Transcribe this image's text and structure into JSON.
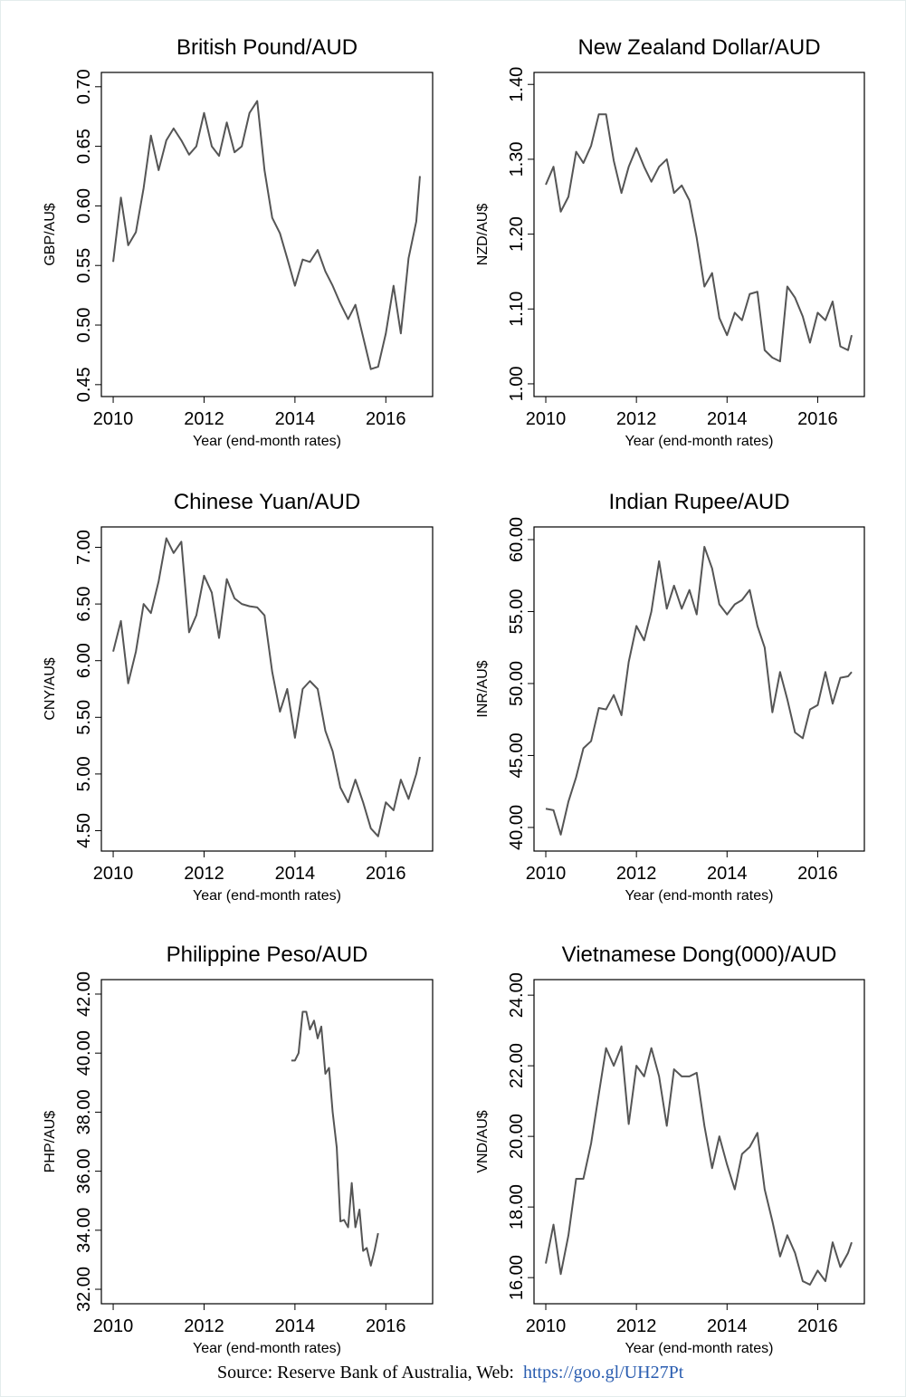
{
  "chart_data": [
    {
      "type": "line",
      "title": "British Pound/AUD",
      "ylabel": "GBP/AU$",
      "xlabel": "Year (end-month rates)",
      "color": "#555555",
      "x": [
        2010,
        2010.17,
        2010.33,
        2010.5,
        2010.67,
        2010.83,
        2011,
        2011.17,
        2011.33,
        2011.5,
        2011.67,
        2011.83,
        2012,
        2012.17,
        2012.33,
        2012.5,
        2012.67,
        2012.83,
        2013,
        2013.17,
        2013.33,
        2013.5,
        2013.67,
        2013.83,
        2014,
        2014.17,
        2014.33,
        2014.5,
        2014.67,
        2014.83,
        2015,
        2015.17,
        2015.33,
        2015.5,
        2015.67,
        2015.83,
        2016,
        2016.17,
        2016.33,
        2016.5,
        2016.67,
        2016.75
      ],
      "values": [
        0.553,
        0.607,
        0.567,
        0.578,
        0.615,
        0.659,
        0.63,
        0.655,
        0.665,
        0.655,
        0.643,
        0.65,
        0.678,
        0.65,
        0.642,
        0.67,
        0.645,
        0.65,
        0.678,
        0.688,
        0.63,
        0.59,
        0.577,
        0.556,
        0.533,
        0.555,
        0.553,
        0.563,
        0.545,
        0.533,
        0.518,
        0.505,
        0.517,
        0.49,
        0.463,
        0.465,
        0.493,
        0.533,
        0.493,
        0.556,
        0.587,
        0.625
      ],
      "xlim": [
        2009.74,
        2017.03
      ],
      "xticks": [
        2010,
        2012,
        2014,
        2016
      ],
      "ylim": [
        0.44,
        0.712
      ],
      "yticks": [
        {
          "value": 0.45,
          "label": "0.45"
        },
        {
          "value": 0.5,
          "label": "0.50"
        },
        {
          "value": 0.55,
          "label": "0.55"
        },
        {
          "value": 0.6,
          "label": "0.60"
        },
        {
          "value": 0.65,
          "label": "0.65"
        },
        {
          "value": 0.7,
          "label": "0.70"
        }
      ]
    },
    {
      "type": "line",
      "title": "New Zealand Dollar/AUD",
      "ylabel": "NZD/AU$",
      "xlabel": "Year (end-month rates)",
      "color": "#555555",
      "x": [
        2010,
        2010.17,
        2010.33,
        2010.5,
        2010.67,
        2010.83,
        2011,
        2011.17,
        2011.33,
        2011.5,
        2011.67,
        2011.83,
        2012,
        2012.17,
        2012.33,
        2012.5,
        2012.67,
        2012.83,
        2013,
        2013.17,
        2013.33,
        2013.5,
        2013.67,
        2013.83,
        2014,
        2014.17,
        2014.33,
        2014.5,
        2014.67,
        2014.83,
        2015,
        2015.17,
        2015.33,
        2015.5,
        2015.67,
        2015.83,
        2016,
        2016.17,
        2016.33,
        2016.5,
        2016.67,
        2016.75
      ],
      "values": [
        1.266,
        1.29,
        1.23,
        1.25,
        1.31,
        1.295,
        1.318,
        1.36,
        1.36,
        1.298,
        1.255,
        1.29,
        1.315,
        1.29,
        1.27,
        1.29,
        1.3,
        1.255,
        1.265,
        1.245,
        1.195,
        1.13,
        1.148,
        1.088,
        1.065,
        1.095,
        1.085,
        1.12,
        1.123,
        1.045,
        1.035,
        1.03,
        1.13,
        1.115,
        1.09,
        1.055,
        1.095,
        1.085,
        1.11,
        1.05,
        1.045,
        1.065
      ],
      "xlim": [
        2009.74,
        2017.03
      ],
      "xticks": [
        2010,
        2012,
        2014,
        2016
      ],
      "ylim": [
        0.983,
        1.416
      ],
      "yticks": [
        {
          "value": 1.0,
          "label": "1.00"
        },
        {
          "value": 1.1,
          "label": "1.10"
        },
        {
          "value": 1.2,
          "label": "1.20"
        },
        {
          "value": 1.3,
          "label": "1.30"
        },
        {
          "value": 1.4,
          "label": "1.40"
        }
      ]
    },
    {
      "type": "line",
      "title": "Chinese Yuan/AUD",
      "ylabel": "CNY/AU$",
      "xlabel": "Year (end-month rates)",
      "color": "#555555",
      "x": [
        2010,
        2010.17,
        2010.33,
        2010.5,
        2010.67,
        2010.83,
        2011,
        2011.17,
        2011.33,
        2011.5,
        2011.67,
        2011.83,
        2012,
        2012.17,
        2012.33,
        2012.5,
        2012.67,
        2012.83,
        2013,
        2013.17,
        2013.33,
        2013.5,
        2013.67,
        2013.83,
        2014,
        2014.17,
        2014.33,
        2014.5,
        2014.67,
        2014.83,
        2015,
        2015.17,
        2015.33,
        2015.5,
        2015.67,
        2015.83,
        2016,
        2016.17,
        2016.33,
        2016.5,
        2016.67,
        2016.75
      ],
      "values": [
        6.08,
        6.35,
        5.8,
        6.08,
        6.5,
        6.42,
        6.7,
        7.08,
        6.95,
        7.05,
        6.25,
        6.4,
        6.75,
        6.6,
        6.2,
        6.72,
        6.55,
        6.5,
        6.48,
        6.47,
        6.4,
        5.9,
        5.55,
        5.75,
        5.32,
        5.75,
        5.82,
        5.75,
        5.38,
        5.2,
        4.88,
        4.75,
        4.95,
        4.75,
        4.52,
        4.45,
        4.75,
        4.68,
        4.95,
        4.78,
        5.0,
        5.15
      ],
      "xlim": [
        2009.74,
        2017.03
      ],
      "xticks": [
        2010,
        2012,
        2014,
        2016
      ],
      "ylim": [
        4.32,
        7.18
      ],
      "yticks": [
        {
          "value": 4.5,
          "label": "4.50"
        },
        {
          "value": 5,
          "label": "5.00"
        },
        {
          "value": 5.5,
          "label": "5.50"
        },
        {
          "value": 6,
          "label": "6.00"
        },
        {
          "value": 6.5,
          "label": "6.50"
        },
        {
          "value": 7,
          "label": "7.00"
        }
      ]
    },
    {
      "type": "line",
      "title": "Indian Rupee/AUD",
      "ylabel": "INR/AU$",
      "xlabel": "Year (end-month rates)",
      "color": "#555555",
      "x": [
        2010,
        2010.17,
        2010.33,
        2010.5,
        2010.67,
        2010.83,
        2011,
        2011.17,
        2011.33,
        2011.5,
        2011.67,
        2011.83,
        2012,
        2012.17,
        2012.33,
        2012.5,
        2012.67,
        2012.83,
        2013,
        2013.17,
        2013.33,
        2013.5,
        2013.67,
        2013.83,
        2014,
        2014.17,
        2014.33,
        2014.5,
        2014.67,
        2014.83,
        2015,
        2015.17,
        2015.33,
        2015.5,
        2015.67,
        2015.83,
        2016,
        2016.17,
        2016.33,
        2016.5,
        2016.67,
        2016.75
      ],
      "values": [
        41.3,
        41.2,
        39.5,
        41.8,
        43.5,
        45.5,
        46,
        48.3,
        48.2,
        49.2,
        47.8,
        51.5,
        54,
        53,
        55,
        58.5,
        55.2,
        56.8,
        55.2,
        56.5,
        54.8,
        59.5,
        58,
        55.5,
        54.8,
        55.5,
        55.8,
        56.5,
        54,
        52.5,
        48,
        50.8,
        48.9,
        46.6,
        46.2,
        48.2,
        48.5,
        50.8,
        48.6,
        50.4,
        50.5,
        50.8
      ],
      "xlim": [
        2009.74,
        2017.03
      ],
      "xticks": [
        2010,
        2012,
        2014,
        2016
      ],
      "ylim": [
        38.36,
        60.88
      ],
      "yticks": [
        {
          "value": 40,
          "label": "40.00"
        },
        {
          "value": 45,
          "label": "45.00"
        },
        {
          "value": 50,
          "label": "50.00"
        },
        {
          "value": 55,
          "label": "55.00"
        },
        {
          "value": 60,
          "label": "60.00"
        }
      ]
    },
    {
      "type": "line",
      "title": "Philippine Peso/AUD",
      "ylabel": "PHP/AU$",
      "xlabel": "Year (end-month rates)",
      "color": "#555555",
      "x": [
        2013.92,
        2014,
        2014.08,
        2014.17,
        2014.25,
        2014.33,
        2014.42,
        2014.5,
        2014.58,
        2014.67,
        2014.75,
        2014.83,
        2014.92,
        2015,
        2015.08,
        2015.17,
        2015.25,
        2015.33,
        2015.42,
        2015.5,
        2015.58,
        2015.67,
        2015.75,
        2015.83
      ],
      "values": [
        39.75,
        39.75,
        40.0,
        41.4,
        41.4,
        40.8,
        41.1,
        40.5,
        40.9,
        39.3,
        39.5,
        38.0,
        36.8,
        34.3,
        34.35,
        34.1,
        35.6,
        34.1,
        34.7,
        33.3,
        33.4,
        32.8,
        33.3,
        33.9
      ],
      "xlim": [
        2009.74,
        2017.03
      ],
      "xticks": [
        2010,
        2012,
        2014,
        2016
      ],
      "ylim": [
        31.51,
        42.49
      ],
      "yticks": [
        {
          "value": 32,
          "label": "32.00"
        },
        {
          "value": 34,
          "label": "34.00"
        },
        {
          "value": 36,
          "label": "36.00"
        },
        {
          "value": 38,
          "label": "38.00"
        },
        {
          "value": 40,
          "label": "40.00"
        },
        {
          "value": 42,
          "label": "42.00"
        }
      ]
    },
    {
      "type": "line",
      "title": "Vietnamese Dong(000)/AUD",
      "ylabel": "VND/AU$",
      "xlabel": "Year (end-month rates)",
      "color": "#555555",
      "x": [
        2010,
        2010.17,
        2010.33,
        2010.5,
        2010.67,
        2010.83,
        2011,
        2011.17,
        2011.33,
        2011.5,
        2011.67,
        2011.83,
        2012,
        2012.17,
        2012.33,
        2012.5,
        2012.67,
        2012.83,
        2013,
        2013.17,
        2013.33,
        2013.5,
        2013.67,
        2013.83,
        2014,
        2014.17,
        2014.33,
        2014.5,
        2014.67,
        2014.83,
        2015,
        2015.17,
        2015.33,
        2015.5,
        2015.67,
        2015.83,
        2016,
        2016.17,
        2016.33,
        2016.5,
        2016.67,
        2016.75
      ],
      "values": [
        16.4,
        17.5,
        16.1,
        17.2,
        18.8,
        18.8,
        19.8,
        21.2,
        22.5,
        22.0,
        22.55,
        20.35,
        22.0,
        21.7,
        22.5,
        21.7,
        20.3,
        21.9,
        21.7,
        21.7,
        21.8,
        20.3,
        19.1,
        20.0,
        19.2,
        18.5,
        19.5,
        19.7,
        20.1,
        18.5,
        17.6,
        16.6,
        17.2,
        16.7,
        15.9,
        15.8,
        16.2,
        15.9,
        17.0,
        16.3,
        16.7,
        17.0
      ],
      "xlim": [
        2009.74,
        2017.03
      ],
      "xticks": [
        2010,
        2012,
        2014,
        2016
      ],
      "ylim": [
        15.26,
        24.44
      ],
      "yticks": [
        {
          "value": 16,
          "label": "16.00"
        },
        {
          "value": 18,
          "label": "18.00"
        },
        {
          "value": 20,
          "label": "20.00"
        },
        {
          "value": 22,
          "label": "22.00"
        },
        {
          "value": 24,
          "label": "24.00"
        }
      ]
    }
  ],
  "source": "Source: Reserve Bank of Australia, Web:",
  "url": "https://goo.gl/UH27Pt"
}
